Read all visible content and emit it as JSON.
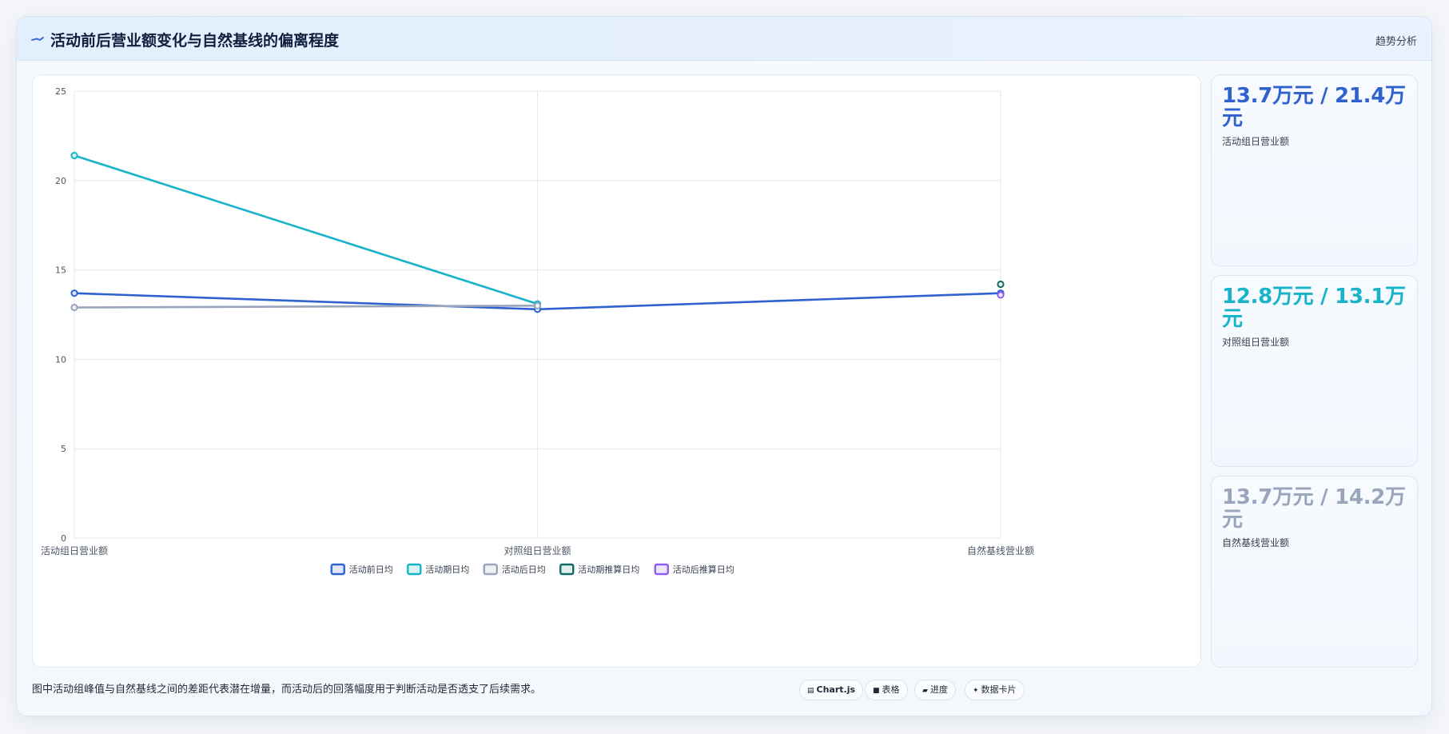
{
  "header": {
    "title": "活动前后营业额变化与自然基线的偏离程度",
    "icon": "trend-line-icon",
    "tag": "趋势分析"
  },
  "chart_data": {
    "type": "line",
    "categories": [
      "活动组日营业额",
      "对照组日营业额",
      "自然基线营业额"
    ],
    "ylim": [
      0,
      25
    ],
    "yticks": [
      0,
      5,
      10,
      15,
      20,
      25
    ],
    "grid": true,
    "legend_position": "bottom",
    "series": [
      {
        "name": "活动前日均",
        "values": [
          13.7,
          12.8,
          13.7
        ],
        "color": "#2f62cf",
        "fill": "#dfe8fa"
      },
      {
        "name": "活动期日均",
        "values": [
          21.4,
          13.1,
          null
        ],
        "color": "#17b3c9",
        "fill": "#daf3f7"
      },
      {
        "name": "活动后日均",
        "values": [
          12.9,
          13.0,
          null
        ],
        "color": "#98a5ba",
        "fill": "#eef1f5"
      },
      {
        "name": "活动期推算日均",
        "values": [
          null,
          null,
          14.2
        ],
        "color": "#116a63",
        "fill": "#e0efee"
      },
      {
        "name": "活动后推算日均",
        "values": [
          null,
          null,
          13.6
        ],
        "color": "#8b5cf6",
        "fill": "#eee8fd"
      }
    ]
  },
  "stats": [
    {
      "value": "13.7万元 / 21.4万元",
      "label": "活动组日营业额",
      "color": "#2f62cf"
    },
    {
      "value": "12.8万元 / 13.1万元",
      "label": "对照组日营业额",
      "color": "#17b3c9"
    },
    {
      "value": "13.7万元 / 14.2万元",
      "label": "自然基线营业额",
      "color": "#98a5ba"
    }
  ],
  "footnote": "图中活动组峰值与自然基线之间的差距代表潜在增量，而活动后的回落幅度用于判断活动是否透支了后续需求。",
  "pills": [
    {
      "glyph": "▤",
      "label": "Chart.js"
    },
    {
      "glyph": "■",
      "label": "表格"
    },
    {
      "glyph": "▰",
      "label": "进度"
    },
    {
      "glyph": "✦",
      "label": "数据卡片"
    }
  ]
}
